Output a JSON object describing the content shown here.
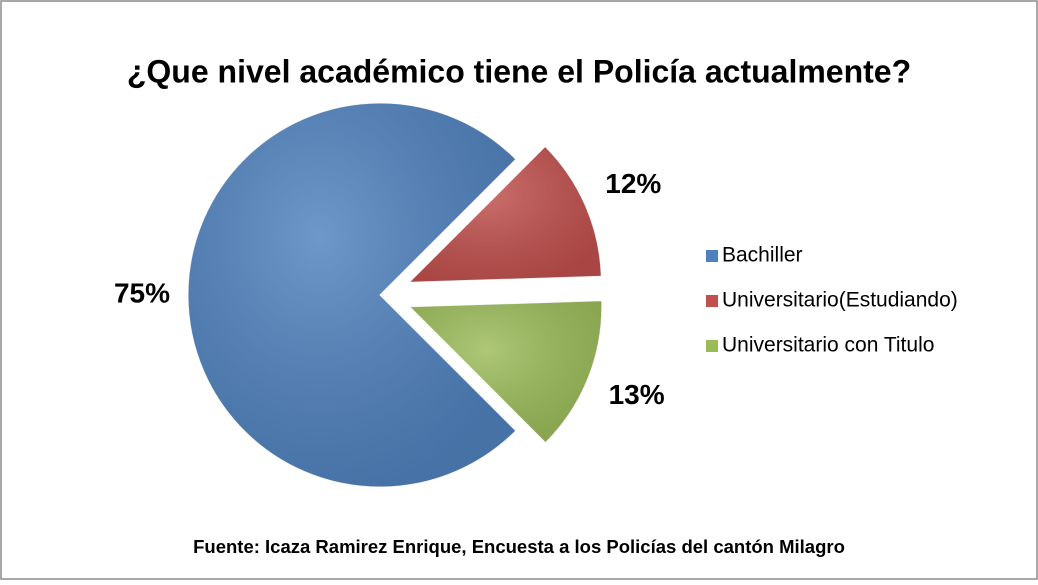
{
  "chart_data": {
    "type": "pie",
    "title": "¿Que nivel académico tiene el Policía actualmente?",
    "categories": [
      "Bachiller",
      "Universitario(Estudiando)",
      "Universitario con Titulo"
    ],
    "values": [
      75,
      12,
      13
    ],
    "value_labels": [
      "75%",
      "12%",
      "13%"
    ],
    "colors": [
      "#4f81bd",
      "#c0504d",
      "#9bbb59"
    ],
    "legend": "right",
    "source": "Fuente: Icaza Ramirez Enrique, Encuesta a los Policías  del cantón Milagro"
  }
}
